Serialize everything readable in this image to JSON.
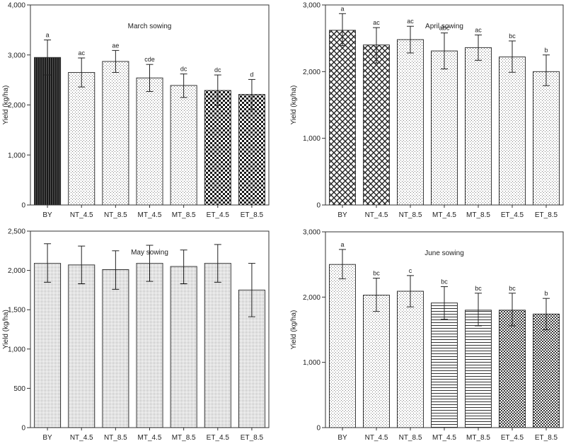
{
  "figure": {
    "categories": [
      "BY",
      "NT_4.5",
      "NT_8.5",
      "MT_4.5",
      "MT_8.5",
      "ET_4.5",
      "ET_8.5"
    ],
    "ylabel": "Yield (kg/ha)"
  },
  "chart_data": [
    {
      "type": "bar",
      "title": "March sowing",
      "ylabel": "Yield (kg/ha)",
      "categories": [
        "BY",
        "NT_4.5",
        "NT_8.5",
        "MT_4.5",
        "MT_8.5",
        "ET_4.5",
        "ET_8.5"
      ],
      "values": [
        2950,
        2650,
        2870,
        2540,
        2390,
        2290,
        2210
      ],
      "error_low": [
        2600,
        2360,
        2650,
        2270,
        2150,
        1990,
        1910
      ],
      "error_high": [
        3300,
        2940,
        3090,
        2810,
        2620,
        2600,
        2510
      ],
      "letters": [
        "a",
        "ac",
        "ae",
        "cde",
        "dc",
        "dc",
        "d"
      ],
      "ylim": [
        0,
        4000
      ],
      "yticks": [
        0,
        1000,
        2000,
        3000,
        4000
      ],
      "ytick_labels": [
        "0",
        "1,000",
        "2,000",
        "3,000",
        "4,000"
      ],
      "patterns": [
        "dark-vlines",
        "light-dots",
        "light-dots",
        "light-dots",
        "light-dots",
        "checker",
        "checker"
      ],
      "grid": false
    },
    {
      "type": "bar",
      "title": "April sowing",
      "ylabel": "Yield (kg/ha)",
      "categories": [
        "BY",
        "NT_4.5",
        "NT_8.5",
        "MT_4.5",
        "MT_8.5",
        "ET_4.5",
        "ET_8.5"
      ],
      "values": [
        2620,
        2400,
        2480,
        2310,
        2360,
        2220,
        2000
      ],
      "error_low": [
        2390,
        2130,
        2280,
        2040,
        2170,
        1990,
        1790
      ],
      "error_high": [
        2870,
        2660,
        2680,
        2580,
        2550,
        2460,
        2250
      ],
      "letters": [
        "a",
        "ac",
        "ac",
        "abc",
        "ac",
        "bc",
        "b"
      ],
      "ylim": [
        0,
        3000
      ],
      "yticks": [
        0,
        1000,
        2000,
        3000
      ],
      "ytick_labels": [
        "0",
        "1,000",
        "2,000",
        "3,000"
      ],
      "patterns": [
        "diamond",
        "diamond",
        "light-dots",
        "light-dots",
        "light-dots",
        "light-dots",
        "light-dots"
      ],
      "grid": false
    },
    {
      "type": "bar",
      "title": "May sowing",
      "ylabel": "Yield (kg/ha)",
      "categories": [
        "BY",
        "NT_4.5",
        "NT_8.5",
        "MT_4.5",
        "MT_8.5",
        "ET_4.5",
        "ET_8.5"
      ],
      "values": [
        2090,
        2070,
        2010,
        2090,
        2050,
        2090,
        1750
      ],
      "error_low": [
        1850,
        1830,
        1760,
        1860,
        1830,
        1850,
        1410
      ],
      "error_high": [
        2340,
        2310,
        2250,
        2320,
        2260,
        2330,
        2090
      ],
      "letters": [
        "",
        "",
        "",
        "",
        "",
        "",
        ""
      ],
      "ylim": [
        0,
        2500
      ],
      "yticks": [
        0,
        500,
        1000,
        1500,
        2000,
        2500
      ],
      "ytick_labels": [
        "0",
        "500",
        "1,000",
        "1,500",
        "2,000",
        "2,500"
      ],
      "patterns": [
        "fine-dots",
        "fine-dots",
        "fine-dots",
        "fine-dots",
        "fine-dots",
        "fine-dots",
        "fine-dots"
      ],
      "grid": false
    },
    {
      "type": "bar",
      "title": "June sowing",
      "ylabel": "Yield (kg/ha)",
      "categories": [
        "BY",
        "NT_4.5",
        "NT_8.5",
        "MT_4.5",
        "MT_8.5",
        "ET_4.5",
        "ET_8.5"
      ],
      "values": [
        2500,
        2030,
        2090,
        1910,
        1800,
        1800,
        1740
      ],
      "error_low": [
        2280,
        1780,
        1850,
        1660,
        1560,
        1560,
        1500
      ],
      "error_high": [
        2730,
        2290,
        2330,
        2160,
        2060,
        2060,
        1980
      ],
      "letters": [
        "a",
        "bc",
        "c",
        "bc",
        "bc",
        "bc",
        "b"
      ],
      "ylim": [
        0,
        3000
      ],
      "yticks": [
        0,
        1000,
        2000,
        3000
      ],
      "ytick_labels": [
        "0",
        "1,000",
        "2,000",
        "3,000"
      ],
      "patterns": [
        "light-dots",
        "light-dots",
        "light-dots",
        "hlines",
        "hlines",
        "checker-fine",
        "checker-fine"
      ],
      "grid": false
    }
  ]
}
